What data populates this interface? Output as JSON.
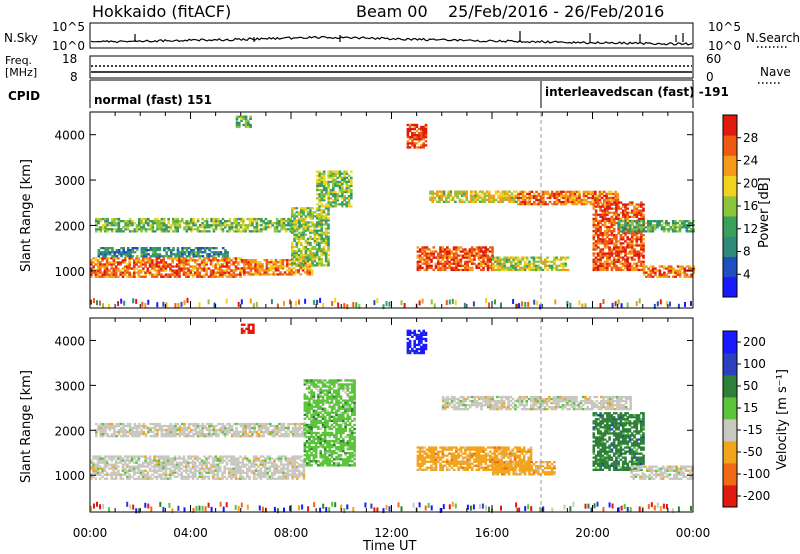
{
  "header": {
    "station": "Hokkaido (fitACF)",
    "beam": "Beam 00",
    "date_range": "25/Feb/2016 - 26/Feb/2016"
  },
  "strips": {
    "nsky_label": "N.Sky",
    "nsky_ticks": [
      "10^5",
      "10^0"
    ],
    "nsearch_label": "N.Search",
    "nsearch_ticks": [
      "10^5",
      "10^0"
    ],
    "freq_label_1": "Freq.",
    "freq_label_2": "[MHz]",
    "freq_ticks": [
      "18",
      "8"
    ],
    "nave_label": "Nave",
    "nave_ticks": [
      "60",
      "0"
    ],
    "cpid_label": "CPID",
    "cpid_segments": [
      {
        "label": "normal (fast) 151"
      },
      {
        "label": "interleavedscan (fast) -191"
      }
    ]
  },
  "chart_data": [
    {
      "type": "heatmap",
      "name": "power",
      "ylabel": "Slant Range [km]",
      "ylim": [
        180,
        4500
      ],
      "yticks": [
        "1000",
        "2000",
        "3000",
        "4000"
      ],
      "xlim": [
        0,
        24
      ],
      "colorbar_label": "Power [dB]",
      "colorbar_ticks": [
        "4",
        "8",
        "12",
        "16",
        "20",
        "24",
        "28"
      ],
      "colorscale": [
        "#1a1aff",
        "#1f4fbf",
        "#2f8a7a",
        "#3aa05a",
        "#8cc43c",
        "#f2d21c",
        "#f59a1a",
        "#ef5a12",
        "#e01a0e"
      ],
      "echo_regions": [
        {
          "t0": 0.0,
          "t1": 6.0,
          "r0": 850,
          "r1": 1300,
          "level": 0.8
        },
        {
          "t0": 0.3,
          "t1": 5.5,
          "r0": 1300,
          "r1": 1500,
          "level": 0.3
        },
        {
          "t0": 0.2,
          "t1": 8.5,
          "r0": 1850,
          "r1": 2150,
          "level": 0.45
        },
        {
          "t0": 6.0,
          "t1": 8.8,
          "r0": 900,
          "r1": 1250,
          "level": 0.75
        },
        {
          "t0": 8.0,
          "t1": 9.5,
          "r0": 1100,
          "r1": 2400,
          "level": 0.5
        },
        {
          "t0": 9.0,
          "t1": 10.4,
          "r0": 2400,
          "r1": 3200,
          "level": 0.5
        },
        {
          "t0": 12.6,
          "t1": 13.4,
          "r0": 3700,
          "r1": 4200,
          "level": 0.9
        },
        {
          "t0": 13.0,
          "t1": 16.0,
          "r0": 1000,
          "r1": 1500,
          "level": 0.85
        },
        {
          "t0": 16.0,
          "t1": 19.0,
          "r0": 1000,
          "r1": 1300,
          "level": 0.55
        },
        {
          "t0": 13.5,
          "t1": 17.0,
          "r0": 2500,
          "r1": 2750,
          "level": 0.6
        },
        {
          "t0": 17.0,
          "t1": 21.0,
          "r0": 2450,
          "r1": 2750,
          "level": 0.8
        },
        {
          "t0": 20.0,
          "t1": 22.0,
          "r0": 1000,
          "r1": 2500,
          "level": 0.85
        },
        {
          "t0": 22.0,
          "t1": 24.0,
          "r0": 850,
          "r1": 1100,
          "level": 0.8
        },
        {
          "t0": 21.0,
          "t1": 24.0,
          "r0": 1850,
          "r1": 2100,
          "level": 0.4
        },
        {
          "t0": 5.8,
          "t1": 6.4,
          "r0": 4150,
          "r1": 4400,
          "level": 0.4
        }
      ]
    },
    {
      "type": "heatmap",
      "name": "velocity",
      "ylabel": "Slant Range [km]",
      "ylim": [
        180,
        4500
      ],
      "yticks": [
        "1000",
        "2000",
        "3000",
        "4000"
      ],
      "xlim": [
        0,
        24
      ],
      "xlabel": "Time UT",
      "xticks": [
        "00:00",
        "04:00",
        "08:00",
        "12:00",
        "16:00",
        "20:00",
        "00:00"
      ],
      "colorbar_label": "Velocity [m s⁻¹]",
      "colorbar_ticks": [
        "200",
        "100",
        "50",
        "15",
        "-15",
        "-50",
        "-100",
        "-200"
      ],
      "colorscale": [
        "#1a1aff",
        "#2c3fbf",
        "#2e7f3a",
        "#5cc43a",
        "#c8c8c0",
        "#f2a41c",
        "#ef6a12",
        "#e01a0e"
      ],
      "echo_regions": [
        {
          "t0": 0.0,
          "t1": 8.5,
          "r0": 900,
          "r1": 1400,
          "v": 0
        },
        {
          "t0": 0.2,
          "t1": 8.5,
          "r0": 1850,
          "r1": 2150,
          "v": 0
        },
        {
          "t0": 8.5,
          "t1": 10.5,
          "r0": 1200,
          "r1": 3100,
          "v": 15
        },
        {
          "t0": 12.6,
          "t1": 13.4,
          "r0": 3700,
          "r1": 4200,
          "v": 200
        },
        {
          "t0": 13.0,
          "t1": 17.5,
          "r0": 1100,
          "r1": 1600,
          "v": -50
        },
        {
          "t0": 16.0,
          "t1": 18.5,
          "r0": 1000,
          "r1": 1300,
          "v": -50
        },
        {
          "t0": 14.0,
          "t1": 21.5,
          "r0": 2450,
          "r1": 2750,
          "v": 0
        },
        {
          "t0": 20.0,
          "t1": 22.0,
          "r0": 1100,
          "r1": 2400,
          "v": 50
        },
        {
          "t0": 21.5,
          "t1": 24.0,
          "r0": 900,
          "r1": 1200,
          "v": 0
        },
        {
          "t0": 6.0,
          "t1": 6.5,
          "r0": 4150,
          "r1": 4350,
          "v": -200
        }
      ]
    }
  ],
  "colors": {
    "frame": "#000000",
    "sky_trace": "#000000",
    "ground_scatter": "#c8c8c0"
  }
}
